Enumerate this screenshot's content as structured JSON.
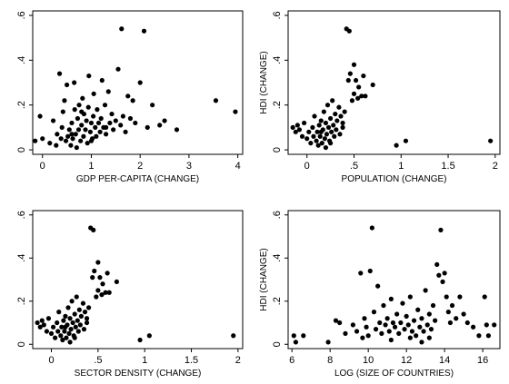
{
  "chart_data": [
    {
      "type": "scatter",
      "xlabel": "GDP PER-CAPITA (CHANGE)",
      "ylabel": "",
      "xlim": [
        -0.2,
        4.1
      ],
      "ylim": [
        -0.02,
        0.62
      ],
      "xticks": [
        0,
        1,
        2,
        3,
        4
      ],
      "xtick_labels": [
        "0",
        "1",
        "2",
        "3",
        "4"
      ],
      "yticks": [
        0,
        0.2,
        0.4,
        0.6
      ],
      "ytick_labels": [
        "0",
        ".2",
        ".4",
        ".6"
      ],
      "grid": false,
      "points": [
        {
          "x": -0.15,
          "y": 0.04
        },
        {
          "x": -0.05,
          "y": 0.15
        },
        {
          "x": 0.0,
          "y": 0.05
        },
        {
          "x": 0.15,
          "y": 0.03
        },
        {
          "x": 0.22,
          "y": 0.13
        },
        {
          "x": 0.28,
          "y": 0.02
        },
        {
          "x": 0.3,
          "y": 0.07
        },
        {
          "x": 0.35,
          "y": 0.34
        },
        {
          "x": 0.38,
          "y": 0.05
        },
        {
          "x": 0.4,
          "y": 0.1
        },
        {
          "x": 0.42,
          "y": 0.17
        },
        {
          "x": 0.45,
          "y": 0.22
        },
        {
          "x": 0.48,
          "y": 0.04
        },
        {
          "x": 0.5,
          "y": 0.29
        },
        {
          "x": 0.52,
          "y": 0.06
        },
        {
          "x": 0.55,
          "y": 0.09
        },
        {
          "x": 0.58,
          "y": 0.02
        },
        {
          "x": 0.6,
          "y": 0.12
        },
        {
          "x": 0.62,
          "y": 0.05
        },
        {
          "x": 0.65,
          "y": 0.3
        },
        {
          "x": 0.66,
          "y": 0.18
        },
        {
          "x": 0.68,
          "y": 0.07
        },
        {
          "x": 0.7,
          "y": 0.01
        },
        {
          "x": 0.72,
          "y": 0.14
        },
        {
          "x": 0.74,
          "y": 0.09
        },
        {
          "x": 0.75,
          "y": 0.2
        },
        {
          "x": 0.78,
          "y": 0.04
        },
        {
          "x": 0.8,
          "y": 0.11
        },
        {
          "x": 0.82,
          "y": 0.23
        },
        {
          "x": 0.84,
          "y": 0.06
        },
        {
          "x": 0.85,
          "y": 0.16
        },
        {
          "x": 0.88,
          "y": 0.09
        },
        {
          "x": 0.9,
          "y": 0.13
        },
        {
          "x": 0.92,
          "y": 0.03
        },
        {
          "x": 0.94,
          "y": 0.19
        },
        {
          "x": 0.95,
          "y": 0.33
        },
        {
          "x": 0.98,
          "y": 0.08
        },
        {
          "x": 1.0,
          "y": 0.12
        },
        {
          "x": 1.02,
          "y": 0.05
        },
        {
          "x": 1.04,
          "y": 0.15
        },
        {
          "x": 1.05,
          "y": 0.25
        },
        {
          "x": 1.08,
          "y": 0.1
        },
        {
          "x": 1.1,
          "y": 0.06
        },
        {
          "x": 1.12,
          "y": 0.18
        },
        {
          "x": 1.15,
          "y": 0.12
        },
        {
          "x": 1.18,
          "y": 0.08
        },
        {
          "x": 1.2,
          "y": 0.14
        },
        {
          "x": 1.22,
          "y": 0.31
        },
        {
          "x": 1.25,
          "y": 0.1
        },
        {
          "x": 1.28,
          "y": 0.2
        },
        {
          "x": 1.3,
          "y": 0.07
        },
        {
          "x": 1.35,
          "y": 0.26
        },
        {
          "x": 1.38,
          "y": 0.12
        },
        {
          "x": 1.42,
          "y": 0.16
        },
        {
          "x": 1.45,
          "y": 0.09
        },
        {
          "x": 1.5,
          "y": 0.13
        },
        {
          "x": 1.55,
          "y": 0.36
        },
        {
          "x": 1.6,
          "y": 0.11
        },
        {
          "x": 1.62,
          "y": 0.54
        },
        {
          "x": 1.65,
          "y": 0.15
        },
        {
          "x": 1.7,
          "y": 0.08
        },
        {
          "x": 1.75,
          "y": 0.24
        },
        {
          "x": 1.8,
          "y": 0.14
        },
        {
          "x": 1.85,
          "y": 0.22
        },
        {
          "x": 1.9,
          "y": 0.12
        },
        {
          "x": 2.0,
          "y": 0.3
        },
        {
          "x": 2.08,
          "y": 0.53
        },
        {
          "x": 2.15,
          "y": 0.1
        },
        {
          "x": 2.25,
          "y": 0.2
        },
        {
          "x": 2.4,
          "y": 0.11
        },
        {
          "x": 2.5,
          "y": 0.13
        },
        {
          "x": 2.75,
          "y": 0.09
        },
        {
          "x": 3.55,
          "y": 0.22
        },
        {
          "x": 3.95,
          "y": 0.17
        },
        {
          "x": 0.6,
          "y": 0.07
        },
        {
          "x": 1.0,
          "y": 0.04
        },
        {
          "x": 0.8,
          "y": 0.17
        },
        {
          "x": 1.3,
          "y": 0.1
        }
      ]
    },
    {
      "type": "scatter",
      "xlabel": "POPULATION (CHANGE)",
      "ylabel": "HDI (CHANGE)",
      "xlim": [
        -0.2,
        2.05
      ],
      "ylim": [
        -0.02,
        0.62
      ],
      "xticks": [
        0,
        0.5,
        1,
        1.5,
        2
      ],
      "xtick_labels": [
        "0",
        ".5",
        "1",
        "1.5",
        "2"
      ],
      "yticks": [
        0,
        0.2,
        0.4,
        0.6
      ],
      "ytick_labels": [
        "0",
        ".2",
        ".4",
        ".6"
      ],
      "grid": false,
      "points": [
        {
          "x": -0.15,
          "y": 0.1
        },
        {
          "x": -0.12,
          "y": 0.08
        },
        {
          "x": -0.1,
          "y": 0.11
        },
        {
          "x": -0.08,
          "y": 0.09
        },
        {
          "x": -0.05,
          "y": 0.06
        },
        {
          "x": -0.03,
          "y": 0.12
        },
        {
          "x": 0.0,
          "y": 0.05
        },
        {
          "x": 0.02,
          "y": 0.08
        },
        {
          "x": 0.04,
          "y": 0.03
        },
        {
          "x": 0.06,
          "y": 0.1
        },
        {
          "x": 0.07,
          "y": 0.06
        },
        {
          "x": 0.08,
          "y": 0.15
        },
        {
          "x": 0.1,
          "y": 0.04
        },
        {
          "x": 0.11,
          "y": 0.08
        },
        {
          "x": 0.12,
          "y": 0.02
        },
        {
          "x": 0.13,
          "y": 0.11
        },
        {
          "x": 0.14,
          "y": 0.06
        },
        {
          "x": 0.15,
          "y": 0.13
        },
        {
          "x": 0.16,
          "y": 0.03
        },
        {
          "x": 0.17,
          "y": 0.09
        },
        {
          "x": 0.18,
          "y": 0.17
        },
        {
          "x": 0.19,
          "y": 0.05
        },
        {
          "x": 0.2,
          "y": 0.12
        },
        {
          "x": 0.21,
          "y": 0.07
        },
        {
          "x": 0.22,
          "y": 0.2
        },
        {
          "x": 0.23,
          "y": 0.1
        },
        {
          "x": 0.24,
          "y": 0.04
        },
        {
          "x": 0.25,
          "y": 0.14
        },
        {
          "x": 0.26,
          "y": 0.08
        },
        {
          "x": 0.27,
          "y": 0.22
        },
        {
          "x": 0.28,
          "y": 0.11
        },
        {
          "x": 0.29,
          "y": 0.06
        },
        {
          "x": 0.3,
          "y": 0.16
        },
        {
          "x": 0.31,
          "y": 0.09
        },
        {
          "x": 0.32,
          "y": 0.13
        },
        {
          "x": 0.34,
          "y": 0.19
        },
        {
          "x": 0.35,
          "y": 0.07
        },
        {
          "x": 0.36,
          "y": 0.15
        },
        {
          "x": 0.38,
          "y": 0.1
        },
        {
          "x": 0.4,
          "y": 0.17
        },
        {
          "x": 0.42,
          "y": 0.54
        },
        {
          "x": 0.45,
          "y": 0.53
        },
        {
          "x": 0.44,
          "y": 0.31
        },
        {
          "x": 0.46,
          "y": 0.34
        },
        {
          "x": 0.48,
          "y": 0.22
        },
        {
          "x": 0.5,
          "y": 0.38
        },
        {
          "x": 0.5,
          "y": 0.25
        },
        {
          "x": 0.52,
          "y": 0.31
        },
        {
          "x": 0.54,
          "y": 0.23
        },
        {
          "x": 0.55,
          "y": 0.28
        },
        {
          "x": 0.58,
          "y": 0.24
        },
        {
          "x": 0.6,
          "y": 0.33
        },
        {
          "x": 0.62,
          "y": 0.24
        },
        {
          "x": 0.7,
          "y": 0.29
        },
        {
          "x": 0.38,
          "y": 0.12
        },
        {
          "x": 0.2,
          "y": 0.01
        },
        {
          "x": 0.15,
          "y": 0.08
        },
        {
          "x": 0.25,
          "y": 0.03
        },
        {
          "x": 0.95,
          "y": 0.02
        },
        {
          "x": 1.05,
          "y": 0.04
        },
        {
          "x": 1.95,
          "y": 0.04
        }
      ]
    },
    {
      "type": "scatter",
      "xlabel": "SECTOR DENSITY (CHANGE)",
      "ylabel": "",
      "xlim": [
        -0.2,
        2.05
      ],
      "ylim": [
        -0.02,
        0.62
      ],
      "xticks": [
        0,
        0.5,
        1,
        1.5,
        2
      ],
      "xtick_labels": [
        "0",
        ".5",
        "1",
        "1.5",
        "2"
      ],
      "yticks": [
        0,
        0.2,
        0.4,
        0.6
      ],
      "ytick_labels": [
        "0",
        ".2",
        ".4",
        ".6"
      ],
      "grid": false,
      "points": [
        {
          "x": -0.15,
          "y": 0.1
        },
        {
          "x": -0.12,
          "y": 0.08
        },
        {
          "x": -0.1,
          "y": 0.11
        },
        {
          "x": -0.08,
          "y": 0.09
        },
        {
          "x": -0.05,
          "y": 0.06
        },
        {
          "x": -0.03,
          "y": 0.12
        },
        {
          "x": 0.0,
          "y": 0.05
        },
        {
          "x": 0.02,
          "y": 0.08
        },
        {
          "x": 0.04,
          "y": 0.03
        },
        {
          "x": 0.06,
          "y": 0.1
        },
        {
          "x": 0.07,
          "y": 0.06
        },
        {
          "x": 0.08,
          "y": 0.15
        },
        {
          "x": 0.1,
          "y": 0.04
        },
        {
          "x": 0.11,
          "y": 0.08
        },
        {
          "x": 0.12,
          "y": 0.02
        },
        {
          "x": 0.13,
          "y": 0.11
        },
        {
          "x": 0.14,
          "y": 0.06
        },
        {
          "x": 0.15,
          "y": 0.13
        },
        {
          "x": 0.16,
          "y": 0.03
        },
        {
          "x": 0.17,
          "y": 0.09
        },
        {
          "x": 0.18,
          "y": 0.17
        },
        {
          "x": 0.19,
          "y": 0.05
        },
        {
          "x": 0.2,
          "y": 0.12
        },
        {
          "x": 0.21,
          "y": 0.07
        },
        {
          "x": 0.22,
          "y": 0.2
        },
        {
          "x": 0.23,
          "y": 0.1
        },
        {
          "x": 0.24,
          "y": 0.04
        },
        {
          "x": 0.25,
          "y": 0.14
        },
        {
          "x": 0.26,
          "y": 0.08
        },
        {
          "x": 0.27,
          "y": 0.22
        },
        {
          "x": 0.28,
          "y": 0.11
        },
        {
          "x": 0.29,
          "y": 0.06
        },
        {
          "x": 0.3,
          "y": 0.16
        },
        {
          "x": 0.31,
          "y": 0.09
        },
        {
          "x": 0.32,
          "y": 0.13
        },
        {
          "x": 0.34,
          "y": 0.19
        },
        {
          "x": 0.35,
          "y": 0.07
        },
        {
          "x": 0.36,
          "y": 0.15
        },
        {
          "x": 0.38,
          "y": 0.1
        },
        {
          "x": 0.4,
          "y": 0.17
        },
        {
          "x": 0.42,
          "y": 0.54
        },
        {
          "x": 0.45,
          "y": 0.53
        },
        {
          "x": 0.44,
          "y": 0.31
        },
        {
          "x": 0.46,
          "y": 0.34
        },
        {
          "x": 0.48,
          "y": 0.22
        },
        {
          "x": 0.5,
          "y": 0.38
        },
        {
          "x": 0.5,
          "y": 0.25
        },
        {
          "x": 0.52,
          "y": 0.31
        },
        {
          "x": 0.54,
          "y": 0.23
        },
        {
          "x": 0.55,
          "y": 0.28
        },
        {
          "x": 0.58,
          "y": 0.24
        },
        {
          "x": 0.6,
          "y": 0.33
        },
        {
          "x": 0.62,
          "y": 0.24
        },
        {
          "x": 0.7,
          "y": 0.29
        },
        {
          "x": 0.38,
          "y": 0.12
        },
        {
          "x": 0.2,
          "y": 0.01
        },
        {
          "x": 0.15,
          "y": 0.08
        },
        {
          "x": 0.25,
          "y": 0.03
        },
        {
          "x": 0.95,
          "y": 0.02
        },
        {
          "x": 1.05,
          "y": 0.04
        },
        {
          "x": 1.95,
          "y": 0.04
        }
      ]
    },
    {
      "type": "scatter",
      "xlabel": "LOG (SIZE OF COUNTRIES)",
      "ylabel": "HDI (CHANGE)",
      "xlim": [
        5.8,
        16.9
      ],
      "ylim": [
        -0.02,
        0.62
      ],
      "xticks": [
        6,
        8,
        10,
        12,
        14,
        16
      ],
      "xtick_labels": [
        "6",
        "8",
        "10",
        "12",
        "14",
        "16"
      ],
      "yticks": [
        0,
        0.2,
        0.4,
        0.6
      ],
      "ytick_labels": [
        "0",
        ".2",
        ".4",
        ".6"
      ],
      "grid": false,
      "points": [
        {
          "x": 6.1,
          "y": 0.04
        },
        {
          "x": 6.2,
          "y": 0.01
        },
        {
          "x": 6.6,
          "y": 0.04
        },
        {
          "x": 7.9,
          "y": 0.01
        },
        {
          "x": 8.3,
          "y": 0.11
        },
        {
          "x": 8.5,
          "y": 0.1
        },
        {
          "x": 8.8,
          "y": 0.05
        },
        {
          "x": 9.2,
          "y": 0.09
        },
        {
          "x": 9.4,
          "y": 0.06
        },
        {
          "x": 9.6,
          "y": 0.33
        },
        {
          "x": 9.7,
          "y": 0.03
        },
        {
          "x": 9.8,
          "y": 0.12
        },
        {
          "x": 9.9,
          "y": 0.08
        },
        {
          "x": 10.0,
          "y": 0.04
        },
        {
          "x": 10.1,
          "y": 0.34
        },
        {
          "x": 10.2,
          "y": 0.54
        },
        {
          "x": 10.3,
          "y": 0.15
        },
        {
          "x": 10.4,
          "y": 0.07
        },
        {
          "x": 10.5,
          "y": 0.27
        },
        {
          "x": 10.6,
          "y": 0.1
        },
        {
          "x": 10.7,
          "y": 0.05
        },
        {
          "x": 10.8,
          "y": 0.18
        },
        {
          "x": 10.9,
          "y": 0.09
        },
        {
          "x": 11.0,
          "y": 0.12
        },
        {
          "x": 11.1,
          "y": 0.06
        },
        {
          "x": 11.2,
          "y": 0.21
        },
        {
          "x": 11.3,
          "y": 0.1
        },
        {
          "x": 11.4,
          "y": 0.08
        },
        {
          "x": 11.5,
          "y": 0.14
        },
        {
          "x": 11.6,
          "y": 0.05
        },
        {
          "x": 11.7,
          "y": 0.1
        },
        {
          "x": 11.8,
          "y": 0.19
        },
        {
          "x": 11.9,
          "y": 0.07
        },
        {
          "x": 12.0,
          "y": 0.13
        },
        {
          "x": 12.1,
          "y": 0.09
        },
        {
          "x": 12.2,
          "y": 0.22
        },
        {
          "x": 12.3,
          "y": 0.06
        },
        {
          "x": 12.4,
          "y": 0.11
        },
        {
          "x": 12.5,
          "y": 0.04
        },
        {
          "x": 12.6,
          "y": 0.16
        },
        {
          "x": 12.7,
          "y": 0.08
        },
        {
          "x": 12.8,
          "y": 0.12
        },
        {
          "x": 12.9,
          "y": 0.06
        },
        {
          "x": 13.0,
          "y": 0.25
        },
        {
          "x": 13.1,
          "y": 0.09
        },
        {
          "x": 13.2,
          "y": 0.14
        },
        {
          "x": 13.3,
          "y": 0.07
        },
        {
          "x": 13.4,
          "y": 0.18
        },
        {
          "x": 13.5,
          "y": 0.11
        },
        {
          "x": 13.6,
          "y": 0.37
        },
        {
          "x": 13.7,
          "y": 0.32
        },
        {
          "x": 13.8,
          "y": 0.53
        },
        {
          "x": 13.9,
          "y": 0.29
        },
        {
          "x": 14.0,
          "y": 0.33
        },
        {
          "x": 14.1,
          "y": 0.22
        },
        {
          "x": 14.2,
          "y": 0.15
        },
        {
          "x": 14.3,
          "y": 0.1
        },
        {
          "x": 14.4,
          "y": 0.18
        },
        {
          "x": 14.6,
          "y": 0.12
        },
        {
          "x": 14.8,
          "y": 0.22
        },
        {
          "x": 15.0,
          "y": 0.14
        },
        {
          "x": 15.2,
          "y": 0.1
        },
        {
          "x": 15.5,
          "y": 0.08
        },
        {
          "x": 15.8,
          "y": 0.04
        },
        {
          "x": 16.1,
          "y": 0.22
        },
        {
          "x": 16.2,
          "y": 0.09
        },
        {
          "x": 16.3,
          "y": 0.04
        },
        {
          "x": 16.6,
          "y": 0.09
        },
        {
          "x": 12.2,
          "y": 0.03
        },
        {
          "x": 11.2,
          "y": 0.02
        },
        {
          "x": 13.2,
          "y": 0.03
        },
        {
          "x": 12.8,
          "y": 0.01
        }
      ]
    }
  ]
}
